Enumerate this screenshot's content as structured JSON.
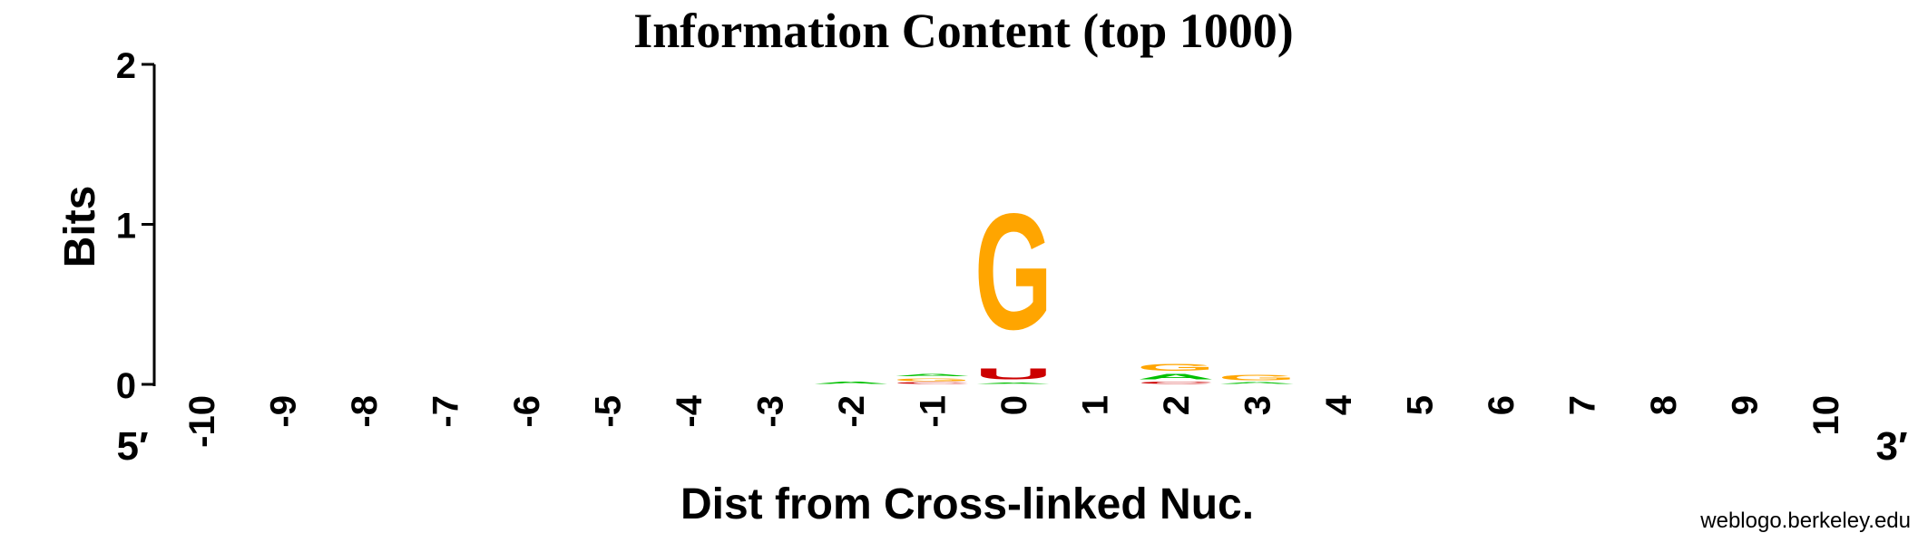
{
  "chart_data": {
    "type": "sequence-logo",
    "title": "Information Content (top 1000)",
    "xlabel": "Dist from Cross-linked Nuc.",
    "ylabel": "Bits",
    "ylim": [
      0,
      2
    ],
    "yticks": [
      "0",
      "1",
      "2"
    ],
    "end_labels": {
      "left": "5′",
      "right": "3′"
    },
    "positions": [
      "-10",
      "-9",
      "-8",
      "-7",
      "-6",
      "-5",
      "-4",
      "-3",
      "-2",
      "-1",
      "0",
      "1",
      "2",
      "3",
      "4",
      "5",
      "6",
      "7",
      "8",
      "9",
      "10"
    ],
    "letter_colors": {
      "A": "#00C000",
      "C": "#CC0000",
      "G": "#FFA500",
      "U": "#CC0000"
    },
    "columns": [
      {
        "position": "-2",
        "stack": [
          {
            "letter": "A",
            "bits": 0.02
          }
        ]
      },
      {
        "position": "-1",
        "stack": [
          {
            "letter": "C",
            "bits": 0.015
          },
          {
            "letter": "G",
            "bits": 0.03
          },
          {
            "letter": "A",
            "bits": 0.025
          }
        ]
      },
      {
        "position": "0",
        "stack": [
          {
            "letter": "A",
            "bits": 0.01
          },
          {
            "letter": "U",
            "bits": 0.11
          },
          {
            "letter": "G",
            "bits": 1.16
          }
        ]
      },
      {
        "position": "2",
        "stack": [
          {
            "letter": "C",
            "bits": 0.02
          },
          {
            "letter": "A",
            "bits": 0.05
          },
          {
            "letter": "G",
            "bits": 0.07
          }
        ]
      },
      {
        "position": "3",
        "stack": [
          {
            "letter": "A",
            "bits": 0.015
          },
          {
            "letter": "G",
            "bits": 0.05
          }
        ]
      }
    ]
  },
  "credit": "weblogo.berkeley.edu"
}
